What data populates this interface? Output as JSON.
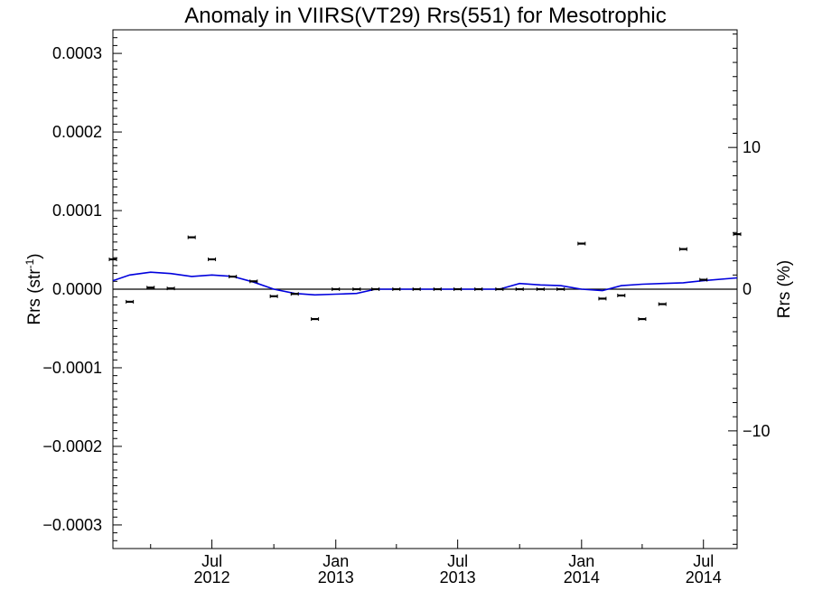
{
  "chart_data": {
    "type": "scatter",
    "title": "Anomaly in VIIRS(VT29) Rrs(551) for Mesotrophic",
    "ylabel_left_main": "Rrs (str",
    "ylabel_left_sup": "-1",
    "ylabel_left_close": ")",
    "ylabel_right": "Rrs (%)",
    "x_range": [
      "2012-02-05",
      "2014-08-20"
    ],
    "y_left_range": [
      -0.00033,
      0.00033
    ],
    "y_right_range": [
      -18.3,
      18.3
    ],
    "x_ticks": [
      {
        "date": "2012-07-01",
        "label_top": "Jul",
        "label_bottom": "2012"
      },
      {
        "date": "2013-01-01",
        "label_top": "Jan",
        "label_bottom": "2013"
      },
      {
        "date": "2013-07-01",
        "label_top": "Jul",
        "label_bottom": "2013"
      },
      {
        "date": "2014-01-01",
        "label_top": "Jan",
        "label_bottom": "2014"
      },
      {
        "date": "2014-07-01",
        "label_top": "Jul",
        "label_bottom": "2014"
      }
    ],
    "y_left_ticks": [
      {
        "value": 0.0003,
        "label": "0.0003"
      },
      {
        "value": 0.0002,
        "label": "0.0002"
      },
      {
        "value": 0.0001,
        "label": "0.0001"
      },
      {
        "value": 0.0,
        "label": "0.0000"
      },
      {
        "value": -0.0001,
        "label": "−0.0001"
      },
      {
        "value": -0.0002,
        "label": "−0.0002"
      },
      {
        "value": -0.0003,
        "label": "−0.0003"
      }
    ],
    "y_right_ticks": [
      {
        "value": 10,
        "label": "10"
      },
      {
        "value": 0,
        "label": "0"
      },
      {
        "value": -10,
        "label": "−10"
      }
    ],
    "series": [
      {
        "kind": "points",
        "color": "#000000",
        "x": [
          "2012-02-05",
          "2012-03-01",
          "2012-04-01",
          "2012-05-01",
          "2012-06-01",
          "2012-07-01",
          "2012-08-01",
          "2012-09-01",
          "2012-10-01",
          "2012-11-01",
          "2012-12-01",
          "2013-01-01",
          "2013-02-01",
          "2013-03-01",
          "2013-04-01",
          "2013-05-01",
          "2013-06-01",
          "2013-07-01",
          "2013-08-01",
          "2013-09-01",
          "2013-10-01",
          "2013-11-01",
          "2013-12-01",
          "2014-01-01",
          "2014-02-01",
          "2014-03-01",
          "2014-04-01",
          "2014-05-01",
          "2014-06-01",
          "2014-07-01",
          "2014-08-20"
        ],
        "y": [
          3.8e-05,
          -1.6e-05,
          2e-06,
          1e-06,
          6.6e-05,
          3.8e-05,
          1.6e-05,
          1e-05,
          -9e-06,
          -6e-06,
          -3.8e-05,
          0.0,
          0.0,
          0.0,
          0.0,
          0.0,
          0.0,
          0.0,
          0.0,
          0.0,
          0.0,
          0.0,
          0.0,
          5.8e-05,
          -1.2e-05,
          -8e-06,
          -3.8e-05,
          -1.9e-05,
          5.1e-05,
          1.2e-05,
          7e-05
        ]
      },
      {
        "kind": "line",
        "color": "#0000dd",
        "x": [
          "2012-02-05",
          "2012-03-01",
          "2012-04-01",
          "2012-05-01",
          "2012-06-01",
          "2012-07-01",
          "2012-08-01",
          "2012-09-01",
          "2012-10-01",
          "2012-11-01",
          "2012-12-01",
          "2013-01-01",
          "2013-02-01",
          "2013-03-01",
          "2013-04-01",
          "2013-05-01",
          "2013-06-01",
          "2013-07-01",
          "2013-08-01",
          "2013-09-01",
          "2013-10-01",
          "2013-11-01",
          "2013-12-01",
          "2014-01-01",
          "2014-02-01",
          "2014-03-01",
          "2014-04-01",
          "2014-05-01",
          "2014-06-01",
          "2014-07-01",
          "2014-08-20"
        ],
        "y": [
          0.6,
          1.0,
          1.2,
          1.1,
          0.9,
          1.0,
          0.9,
          0.5,
          0.0,
          -0.3,
          -0.4,
          -0.35,
          -0.3,
          0.0,
          0.0,
          0.0,
          0.0,
          0.0,
          0.0,
          0.0,
          0.4,
          0.3,
          0.25,
          0.0,
          -0.1,
          0.25,
          0.35,
          0.4,
          0.45,
          0.6,
          0.8
        ]
      }
    ]
  }
}
